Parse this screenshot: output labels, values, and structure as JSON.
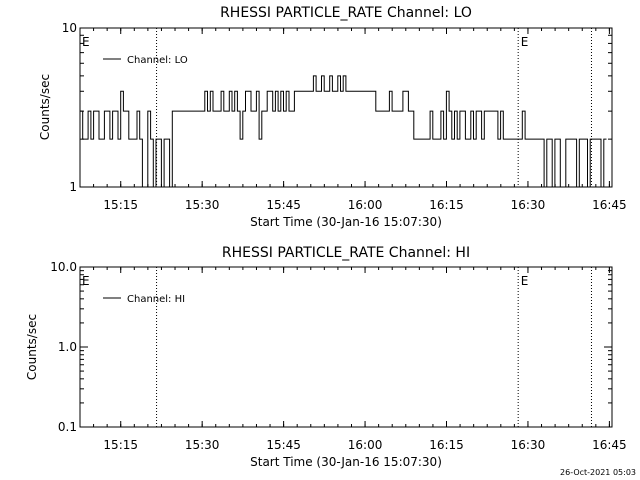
{
  "charts": [
    {
      "type": "line",
      "title": "RHESSI PARTICLE_RATE Channel: LO",
      "xlabel": "Start Time (30-Jan-16 15:07:30)",
      "ylabel": "Counts/sec",
      "y_scale": "log",
      "ylim": [
        1,
        10
      ],
      "y_ticks": [
        1,
        10
      ],
      "y_tick_labels": [
        "1",
        "10"
      ],
      "xlim_minutes": [
        15.125,
        16.758
      ],
      "x_ticks": [
        15.25,
        15.5,
        15.75,
        16.0,
        16.25,
        16.5,
        16.75
      ],
      "x_tick_labels": [
        "15:15",
        "15:30",
        "15:45",
        "16:00",
        "16:15",
        "16:30",
        "16:45"
      ],
      "legend": {
        "label": "Channel: LO",
        "position": "top-left"
      },
      "event_lines": [
        15.36,
        16.47,
        16.695
      ],
      "event_markers": [
        {
          "x": 15.128,
          "label": "E"
        },
        {
          "x": 16.475,
          "label": "E"
        }
      ],
      "series": [
        {
          "name": "Channel: LO",
          "step": 0.00833,
          "x_start": 15.125,
          "values": [
            3,
            2,
            2,
            3,
            2,
            3,
            3,
            2,
            2,
            3,
            3,
            2,
            3,
            3,
            2,
            4,
            3,
            3,
            2,
            2,
            2,
            3,
            2,
            1,
            1,
            3,
            2,
            1,
            2,
            2,
            1,
            2,
            2,
            1,
            3,
            3,
            3,
            3,
            3,
            3,
            3,
            3,
            3,
            3,
            3,
            3,
            4,
            3,
            4,
            3,
            3,
            3,
            4,
            3,
            3,
            4,
            3,
            4,
            3,
            2,
            3,
            4,
            4,
            3,
            3,
            4,
            2,
            3,
            3,
            4,
            4,
            3,
            4,
            3,
            4,
            3,
            4,
            3,
            3,
            4,
            4,
            4,
            4,
            4,
            4,
            4,
            5,
            4,
            4,
            5,
            4,
            4,
            5,
            4,
            4,
            5,
            4,
            5,
            4,
            4,
            4,
            4,
            4,
            4,
            4,
            4,
            4,
            4,
            4,
            3,
            3,
            3,
            3,
            3,
            4,
            3,
            3,
            3,
            3,
            4,
            4,
            3,
            3,
            2,
            2,
            2,
            2,
            2,
            2,
            3,
            2,
            2,
            2,
            3,
            2,
            4,
            3,
            2,
            3,
            2,
            3,
            3,
            2,
            2,
            3,
            2,
            3,
            3,
            2,
            3,
            3,
            3,
            3,
            3,
            2,
            3,
            2,
            2,
            2,
            2,
            2,
            2,
            2,
            3,
            2,
            2,
            2,
            2,
            2,
            2,
            2,
            1,
            2,
            2,
            1,
            2,
            2,
            1,
            1,
            2,
            2,
            2,
            2,
            1,
            2,
            2,
            2,
            1,
            2,
            2,
            2,
            2,
            1,
            2
          ]
        }
      ]
    },
    {
      "type": "line",
      "title": "RHESSI PARTICLE_RATE Channel: HI",
      "xlabel": "Start Time (30-Jan-16 15:07:30)",
      "ylabel": "Counts/sec",
      "y_scale": "log",
      "ylim": [
        0.1,
        10
      ],
      "y_ticks": [
        0.1,
        1,
        10
      ],
      "y_tick_labels": [
        "0.1",
        "1.0",
        "10.0"
      ],
      "xlim_minutes": [
        15.125,
        16.758
      ],
      "x_ticks": [
        15.25,
        15.5,
        15.75,
        16.0,
        16.25,
        16.5,
        16.75
      ],
      "x_tick_labels": [
        "15:15",
        "15:30",
        "15:45",
        "16:00",
        "16:15",
        "16:30",
        "16:45"
      ],
      "legend": {
        "label": "Channel: HI",
        "position": "top-left"
      },
      "event_lines": [
        15.36,
        16.47,
        16.695
      ],
      "event_markers": [
        {
          "x": 15.128,
          "label": "E"
        },
        {
          "x": 16.475,
          "label": "E"
        }
      ],
      "series": [
        {
          "name": "Channel: HI",
          "values": []
        }
      ]
    }
  ],
  "footer": {
    "timestamp": "26-Oct-2021 05:03"
  }
}
